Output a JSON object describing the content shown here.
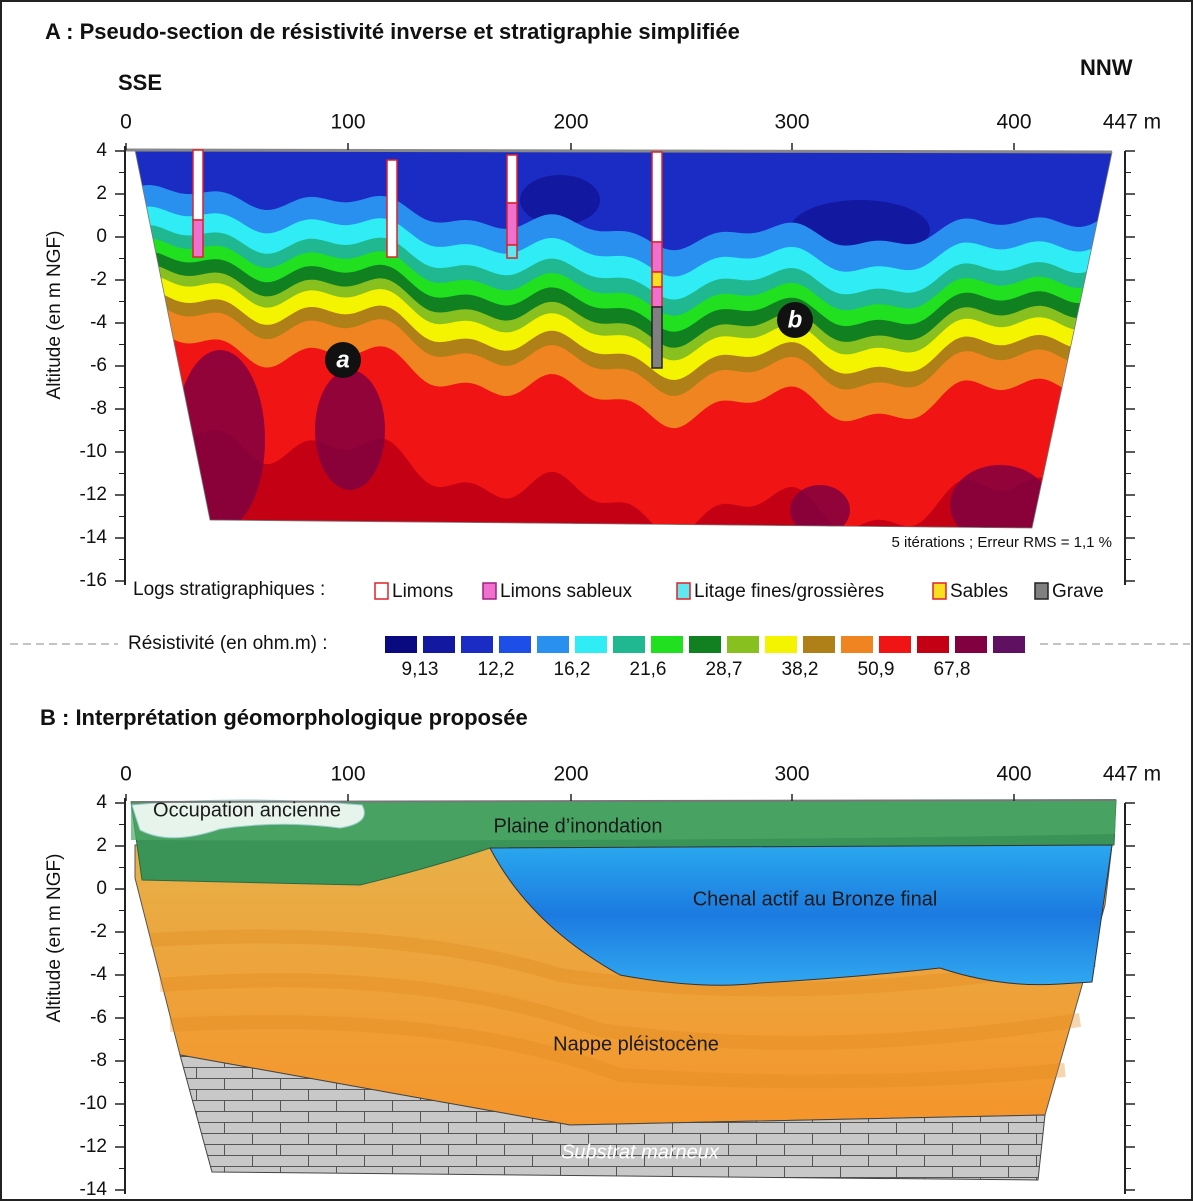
{
  "panel_a": {
    "title": "A : Pseudo-section de résistivité inverse et stratigraphie simplifiée",
    "left_label": "SSE",
    "right_label": "NNW",
    "x_ticks": [
      "0",
      "100",
      "200",
      "300",
      "400",
      "447 m"
    ],
    "y_ticks": [
      "4",
      "2",
      "0",
      "-2",
      "-4",
      "-6",
      "-8",
      "-10",
      "-12",
      "-14",
      "-16"
    ],
    "y_axis_title": "Altitude (en m NGF)",
    "markers": [
      "a",
      "b"
    ],
    "note": "5 itérations ; Erreur RMS = 1,1 %",
    "logs_legend": {
      "title": "Logs stratigraphiques :",
      "items": [
        {
          "label": "Limons",
          "color": "#ffffff",
          "border": "#e0202a"
        },
        {
          "label": "Limons sableux",
          "color": "#f070d0",
          "border": "#a02080"
        },
        {
          "label": "Litage fines/grossières",
          "color": "#60e8f0",
          "border": "#e0202a"
        },
        {
          "label": "Sables",
          "color": "#f8e020",
          "border": "#e0202a"
        },
        {
          "label": "Grave",
          "color": "#808080",
          "border": "#222222"
        }
      ]
    }
  },
  "resistivity_legend": {
    "title": "Résistivité (en ohm.m) :",
    "colors": [
      "#0a0a80",
      "#1218a0",
      "#1a2cc4",
      "#1e4ee8",
      "#2a90f0",
      "#30ecf4",
      "#20b890",
      "#20e020",
      "#108020",
      "#88c020",
      "#f4f400",
      "#b08018",
      "#f08420",
      "#f01414",
      "#c40014",
      "#800040",
      "#601060"
    ],
    "labels": [
      "9,13",
      "12,2",
      "16,2",
      "21,6",
      "28,7",
      "38,2",
      "50,9",
      "67,8"
    ]
  },
  "panel_b": {
    "title": "B : Interprétation géomorphologique proposée",
    "x_ticks": [
      "0",
      "100",
      "200",
      "300",
      "400",
      "447 m"
    ],
    "y_ticks": [
      "4",
      "2",
      "0",
      "-2",
      "-4",
      "-6",
      "-8",
      "-10",
      "-12",
      "-14"
    ],
    "y_axis_title": "Altitude (en m NGF)",
    "units": [
      "Occupation ancienne",
      "Plaine d’inondation",
      "Chenal actif au Bronze final",
      "Nappe pléistocène",
      "Substrat marneux"
    ]
  }
}
